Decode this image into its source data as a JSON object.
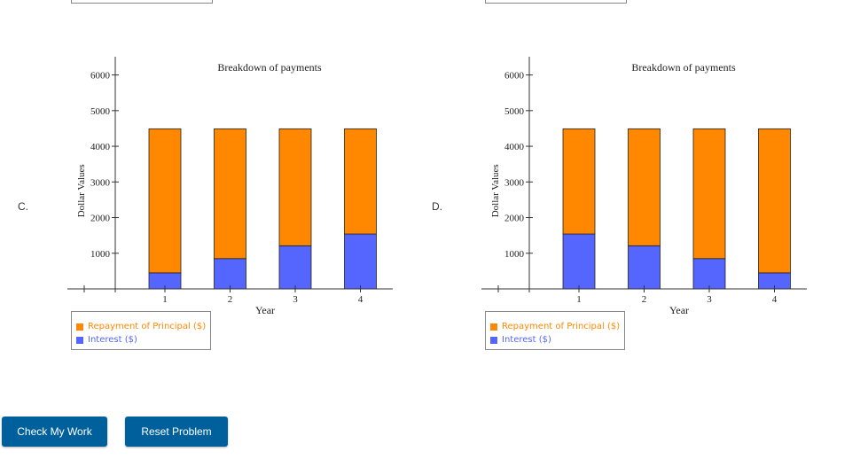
{
  "options": [
    {
      "label": "C."
    },
    {
      "label": "D."
    }
  ],
  "colors": {
    "principal": "#ff8800",
    "interest": "#5566ff",
    "button": "#00609c"
  },
  "legend": {
    "principal": "Repayment of Principal ($)",
    "interest": "Interest ($)"
  },
  "buttons": {
    "check": "Check My Work",
    "reset": "Reset Problem"
  },
  "chart_data": [
    {
      "type": "bar",
      "stacked": true,
      "title": "Breakdown of payments",
      "xlabel": "Year",
      "ylabel": "Dollar Values",
      "categories": [
        "1",
        "2",
        "3",
        "4"
      ],
      "ylim": [
        0,
        6000
      ],
      "yticks": [
        1000,
        2000,
        3000,
        4000,
        5000,
        6000
      ],
      "series": [
        {
          "name": "Interest ($)",
          "values": [
            450,
            850,
            1210,
            1540
          ]
        },
        {
          "name": "Repayment of Principal ($)",
          "values": [
            4040,
            3640,
            3280,
            2950
          ]
        }
      ]
    },
    {
      "type": "bar",
      "stacked": true,
      "title": "Breakdown of payments",
      "xlabel": "Year",
      "ylabel": "Dollar Values",
      "categories": [
        "1",
        "2",
        "3",
        "4"
      ],
      "ylim": [
        0,
        6000
      ],
      "yticks": [
        1000,
        2000,
        3000,
        4000,
        5000,
        6000
      ],
      "series": [
        {
          "name": "Interest ($)",
          "values": [
            1540,
            1210,
            850,
            450
          ]
        },
        {
          "name": "Repayment of Principal ($)",
          "values": [
            2950,
            3280,
            3640,
            4040
          ]
        }
      ]
    }
  ]
}
